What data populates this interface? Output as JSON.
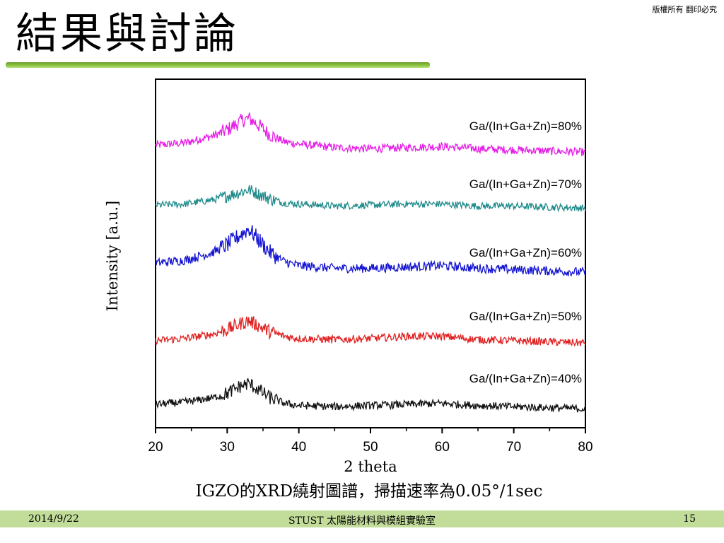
{
  "slide": {
    "title": "結果與討論",
    "copyright": "版權所有 翻印必究",
    "caption": "IGZO的XRD繞射圖譜，掃描速率為0.05°/1sec",
    "footer": {
      "date": "2014/9/22",
      "center": "STUST 太陽能材料與模組實驗室",
      "page": "15"
    },
    "colors": {
      "accent": "#8dc63f",
      "footer_bg": "#c2dc9a"
    }
  },
  "chart_data": {
    "type": "line",
    "xlabel": "2 theta",
    "ylabel": "Intensity [a.u.]",
    "xlim": [
      20,
      80
    ],
    "x_ticks": [
      20,
      30,
      40,
      50,
      60,
      70,
      80
    ],
    "y_ticks": [],
    "grid": false,
    "legend": "inline labels at right of each curve",
    "stacked_offset": true,
    "peak_position_2theta": 33,
    "series": [
      {
        "name": "Ga/(In+Ga+Zn)=80%",
        "color": "#e61ee6",
        "x": [
          20,
          24,
          28,
          30,
          32,
          33,
          34,
          36,
          38,
          40,
          45,
          50,
          55,
          60,
          65,
          70,
          75,
          80
        ],
        "y": [
          0.34,
          0.36,
          0.42,
          0.47,
          0.55,
          0.57,
          0.53,
          0.43,
          0.37,
          0.35,
          0.32,
          0.31,
          0.32,
          0.33,
          0.31,
          0.3,
          0.29,
          0.28
        ]
      },
      {
        "name": "Ga/(In+Ga+Zn)=70%",
        "color": "#1f8a8a",
        "x": [
          20,
          24,
          28,
          30,
          32,
          33,
          34,
          36,
          38,
          40,
          45,
          50,
          55,
          60,
          65,
          70,
          75,
          80
        ],
        "y": [
          0.3,
          0.31,
          0.35,
          0.39,
          0.43,
          0.45,
          0.42,
          0.36,
          0.32,
          0.31,
          0.29,
          0.3,
          0.31,
          0.31,
          0.29,
          0.29,
          0.28,
          0.27
        ]
      },
      {
        "name": "Ga/(In+Ga+Zn)=60%",
        "color": "#1414d2",
        "x": [
          20,
          24,
          28,
          30,
          32,
          33,
          34,
          36,
          38,
          40,
          45,
          50,
          55,
          60,
          65,
          70,
          75,
          80
        ],
        "y": [
          0.44,
          0.46,
          0.52,
          0.58,
          0.66,
          0.7,
          0.64,
          0.52,
          0.45,
          0.42,
          0.4,
          0.4,
          0.41,
          0.42,
          0.4,
          0.39,
          0.38,
          0.37
        ]
      },
      {
        "name": "Ga/(In+Ga+Zn)=50%",
        "color": "#e02020",
        "x": [
          20,
          24,
          28,
          30,
          32,
          33,
          34,
          36,
          38,
          40,
          45,
          50,
          55,
          60,
          65,
          70,
          75,
          80
        ],
        "y": [
          0.32,
          0.34,
          0.38,
          0.42,
          0.48,
          0.5,
          0.47,
          0.4,
          0.36,
          0.34,
          0.33,
          0.34,
          0.36,
          0.36,
          0.33,
          0.32,
          0.31,
          0.3
        ]
      },
      {
        "name": "Ga/(In+Ga+Zn)=40%",
        "color": "#111111",
        "x": [
          20,
          24,
          28,
          30,
          32,
          33,
          34,
          36,
          38,
          40,
          45,
          50,
          55,
          60,
          65,
          70,
          75,
          80
        ],
        "y": [
          0.3,
          0.32,
          0.36,
          0.4,
          0.47,
          0.49,
          0.45,
          0.36,
          0.31,
          0.29,
          0.28,
          0.29,
          0.3,
          0.31,
          0.29,
          0.28,
          0.27,
          0.26
        ]
      }
    ]
  }
}
